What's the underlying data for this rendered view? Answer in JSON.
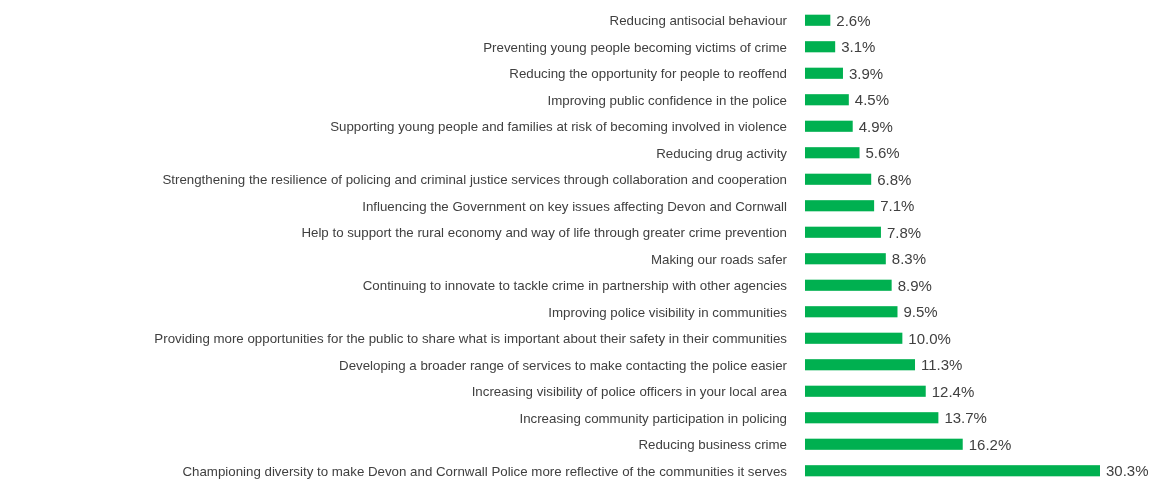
{
  "chart_data": {
    "type": "bar",
    "orientation": "horizontal",
    "value_labels": [
      "2.6%",
      "3.1%",
      "3.9%",
      "4.5%",
      "4.9%",
      "5.6%",
      "6.8%",
      "7.1%",
      "7.8%",
      "8.3%",
      "8.9%",
      "9.5%",
      "10.0%",
      "11.3%",
      "12.4%",
      "13.7%",
      "16.2%",
      "30.3%"
    ],
    "color": "#00b050",
    "categories": [
      "Reducing antisocial behaviour",
      "Preventing young people becoming victims of crime",
      "Reducing the opportunity for people to reoffend",
      "Improving public confidence in the police",
      "Supporting young people and families at risk of becoming involved in violence",
      "Reducing drug activity",
      "Strengthening the resilience of policing and criminal justice services through collaboration and cooperation",
      "Influencing the Government on key issues affecting Devon and Cornwall",
      "Help to support the rural economy and way of life through greater crime prevention",
      "Making our roads safer",
      "Continuing to innovate to tackle crime in partnership with other agencies",
      "Improving police visibility in communities",
      "Providing more opportunities for the public to share what is important about their safety in their communities",
      "Developing a broader range of services to make contacting the police easier",
      "Increasing visibility of police officers in your local area",
      "Increasing community participation in policing",
      "Reducing business crime",
      "Championing diversity to make Devon and Cornwall Police more reflective of the communities it serves"
    ],
    "values": [
      2.6,
      3.1,
      3.9,
      4.5,
      4.9,
      5.6,
      6.8,
      7.1,
      7.8,
      8.3,
      8.9,
      9.5,
      10.0,
      11.3,
      12.4,
      13.7,
      16.2,
      30.3
    ]
  }
}
